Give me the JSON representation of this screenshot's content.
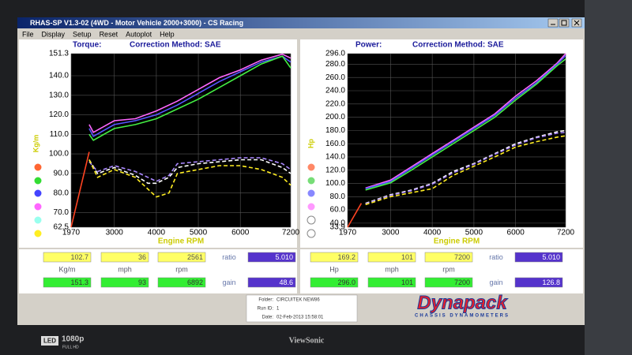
{
  "window": {
    "title": "RHAS-SP V1.3-02  (4WD - Motor Vehicle 2000+3000) - CS Racing"
  },
  "menu": [
    "File",
    "Display",
    "Setup",
    "Reset",
    "Autoplot",
    "Help"
  ],
  "charts": [
    {
      "type": "line",
      "title": "Torque:",
      "subtitle": "Correction Method: SAE",
      "ylabel": "Kg/m",
      "xlabel": "Engine RPM",
      "xlim": [
        1970,
        7200
      ],
      "xticks": [
        1970,
        3000,
        4000,
        5000,
        6000,
        7200
      ],
      "ylim": [
        62.5,
        151.3
      ],
      "yticks": [
        62.5,
        {
          "value": 70,
          "label": "70.0"
        },
        {
          "value": 80,
          "label": "80.0"
        },
        {
          "value": 90,
          "label": "90.0"
        },
        {
          "value": 100,
          "label": "100.0"
        },
        {
          "value": 110,
          "label": "110.0"
        },
        {
          "value": 120,
          "label": "120.0"
        },
        {
          "value": 130,
          "label": "130.0"
        },
        {
          "value": 140,
          "label": "140.0"
        },
        151.3
      ],
      "grid": true,
      "series": [
        {
          "color": "#ff4422",
          "style": "solid",
          "x": [
            1970,
            2400
          ],
          "values": [
            62.5,
            101
          ]
        },
        {
          "color": "#ff66ff",
          "style": "solid",
          "x": [
            2400,
            2500,
            3000,
            3500,
            4000,
            4500,
            5000,
            5500,
            6000,
            6500,
            7000,
            7200
          ],
          "values": [
            115,
            111,
            117,
            118,
            122,
            127,
            133,
            139,
            143,
            148,
            151,
            149
          ]
        },
        {
          "color": "#5555ff",
          "style": "solid",
          "x": [
            2400,
            2500,
            3000,
            3500,
            4000,
            4500,
            5000,
            5500,
            6000,
            6500,
            7000,
            7200
          ],
          "values": [
            113,
            109,
            115,
            117,
            120,
            125,
            131,
            137,
            142,
            147,
            150,
            147
          ]
        },
        {
          "color": "#44ee44",
          "style": "solid",
          "x": [
            2400,
            2500,
            3000,
            3500,
            4000,
            4500,
            5000,
            5500,
            6000,
            6500,
            7000,
            7200
          ],
          "values": [
            110,
            107,
            113,
            115,
            118,
            123,
            128,
            134,
            140,
            146,
            150,
            144
          ]
        },
        {
          "color": "#ffffff",
          "style": "dashed",
          "x": [
            2400,
            2600,
            3000,
            3500,
            3800,
            4000,
            4300,
            4500,
            5000,
            5500,
            6000,
            6500,
            7000,
            7200
          ],
          "values": [
            97,
            90,
            93,
            89,
            85,
            85,
            88,
            93,
            95,
            96,
            97,
            97,
            93,
            90
          ]
        },
        {
          "color": "#aa88ff",
          "style": "dashed",
          "x": [
            2400,
            2600,
            3000,
            3500,
            3800,
            4000,
            4300,
            4500,
            5000,
            5500,
            6000,
            6500,
            7000,
            7200
          ],
          "values": [
            96,
            91,
            94,
            91,
            88,
            86,
            89,
            95,
            96,
            97,
            98,
            98,
            95,
            92
          ]
        },
        {
          "color": "#ffee22",
          "style": "dashed",
          "x": [
            2400,
            2600,
            3000,
            3500,
            4000,
            4300,
            4500,
            5000,
            5500,
            6000,
            6500,
            7000,
            7200
          ],
          "values": [
            97,
            88,
            92,
            88,
            78,
            80,
            90,
            92,
            94,
            94,
            92,
            88,
            84
          ]
        }
      ]
    },
    {
      "type": "line",
      "title": "Power:",
      "subtitle": "Correction Method: SAE",
      "ylabel": "Hp",
      "xlabel": "Engine RPM",
      "xlim": [
        1970,
        7200
      ],
      "xticks": [
        1970,
        3000,
        4000,
        5000,
        6000,
        7200
      ],
      "ylim": [
        33.9,
        296
      ],
      "yticks": [
        33.9,
        {
          "value": 40,
          "label": "40.0"
        },
        {
          "value": 60,
          "label": "60.0"
        },
        {
          "value": 80,
          "label": "80.0"
        },
        {
          "value": 100,
          "label": "100.0"
        },
        {
          "value": 120,
          "label": "120.0"
        },
        {
          "value": 140,
          "label": "140.0"
        },
        {
          "value": 160,
          "label": "160.0"
        },
        {
          "value": 180,
          "label": "180.0"
        },
        {
          "value": 200,
          "label": "200.0"
        },
        {
          "value": 220,
          "label": "220.0"
        },
        {
          "value": 240,
          "label": "240.0"
        },
        {
          "value": 260,
          "label": "260.0"
        },
        {
          "value": 280,
          "label": "280.0"
        },
        {
          "value": 296,
          "label": "296.0"
        }
      ],
      "grid": true,
      "series": [
        {
          "color": "#ff4422",
          "style": "solid",
          "x": [
            1970,
            2300
          ],
          "values": [
            33.9,
            70
          ]
        },
        {
          "color": "#ff66ff",
          "style": "solid",
          "x": [
            2400,
            3000,
            3500,
            4000,
            4500,
            5000,
            5500,
            6000,
            6500,
            7000,
            7200
          ],
          "values": [
            93,
            105,
            125,
            145,
            165,
            185,
            205,
            232,
            255,
            282,
            296
          ]
        },
        {
          "color": "#5555ff",
          "style": "solid",
          "x": [
            2400,
            3000,
            3500,
            4000,
            4500,
            5000,
            5500,
            6000,
            6500,
            7000,
            7200
          ],
          "values": [
            92,
            103,
            123,
            143,
            163,
            183,
            203,
            229,
            252,
            280,
            293
          ]
        },
        {
          "color": "#44ee44",
          "style": "solid",
          "x": [
            2400,
            3000,
            3500,
            4000,
            4500,
            5000,
            5500,
            6000,
            6500,
            7000,
            7200
          ],
          "values": [
            90,
            101,
            120,
            140,
            160,
            180,
            200,
            226,
            250,
            278,
            288
          ]
        },
        {
          "color": "#ffffff",
          "style": "dashed",
          "x": [
            2400,
            3000,
            3500,
            4000,
            4500,
            5000,
            5500,
            6000,
            6500,
            7000,
            7200
          ],
          "values": [
            70,
            83,
            90,
            100,
            118,
            130,
            145,
            160,
            170,
            178,
            180
          ]
        },
        {
          "color": "#aa88ff",
          "style": "dashed",
          "x": [
            2400,
            3000,
            3500,
            4000,
            4500,
            5000,
            5500,
            6000,
            6500,
            7000,
            7200
          ],
          "values": [
            69,
            82,
            89,
            99,
            116,
            129,
            144,
            158,
            169,
            176,
            177
          ]
        },
        {
          "color": "#ffee22",
          "style": "dashed",
          "x": [
            2400,
            3000,
            3500,
            4000,
            4500,
            5000,
            5500,
            6000,
            6500,
            7000,
            7200
          ],
          "values": [
            68,
            80,
            86,
            92,
            112,
            126,
            140,
            155,
            163,
            170,
            172
          ]
        }
      ]
    }
  ],
  "readouts": [
    {
      "row1": [
        "102.7",
        "36",
        "2561"
      ],
      "ratio_label": "ratio",
      "ratio": "5.010",
      "units": [
        "Kg/m",
        "mph",
        "rpm"
      ],
      "row2": [
        "151.3",
        "93",
        "6892"
      ],
      "gain_label": "gain",
      "gain": "48.6"
    },
    {
      "row1": [
        "169.2",
        "101",
        "7200"
      ],
      "ratio_label": "ratio",
      "ratio": "5.010",
      "units": [
        "Hp",
        "mph",
        "rpm"
      ],
      "row2": [
        "296.0",
        "101",
        "7200"
      ],
      "gain_label": "gain",
      "gain": "126.8"
    }
  ],
  "run_info": {
    "folder_label": "Folder:",
    "folder": "CIRCUITEK NEW86",
    "run_label": "Run ID:",
    "run": "1",
    "date_label": "Date:",
    "date": "02-Feb-2013 15:58:01"
  },
  "logo": {
    "name": "Dynapack",
    "tagline": "CHASSIS DYNAMOMETERS"
  },
  "monitor": {
    "led": "LED",
    "resolution": "1080p",
    "hd": "FULL HD",
    "brand": "ViewSonic"
  }
}
